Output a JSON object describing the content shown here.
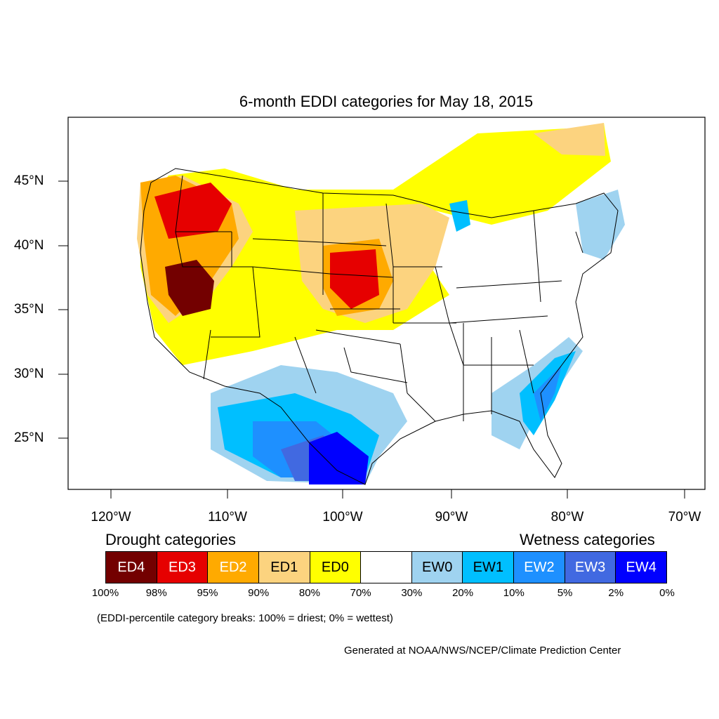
{
  "title": "6-month EDDI categories for May 18, 2015",
  "lon_labels": [
    "120°W",
    "110°W",
    "100°W",
    "90°W",
    "80°W",
    "70°W"
  ],
  "lat_labels": [
    "45°N",
    "40°N",
    "35°N",
    "30°N",
    "25°N"
  ],
  "legend": {
    "drought_heading": "Drought categories",
    "wetness_heading": "Wetness categories",
    "categories": [
      {
        "label": "ED4",
        "color": "#730000",
        "text_color": "#ffffff"
      },
      {
        "label": "ED3",
        "color": "#e60000",
        "text_color": "#ffffff"
      },
      {
        "label": "ED2",
        "color": "#ffaa00",
        "text_color": "#ffffff"
      },
      {
        "label": "ED1",
        "color": "#fcd37f",
        "text_color": "#000000"
      },
      {
        "label": "ED0",
        "color": "#ffff00",
        "text_color": "#000000"
      },
      {
        "label": "",
        "color": "#ffffff",
        "text_color": "#000000"
      },
      {
        "label": "EW0",
        "color": "#9fd3f0",
        "text_color": "#000000"
      },
      {
        "label": "EW1",
        "color": "#00bfff",
        "text_color": "#000000"
      },
      {
        "label": "EW2",
        "color": "#1e90ff",
        "text_color": "#ffffff"
      },
      {
        "label": "EW3",
        "color": "#4169e1",
        "text_color": "#ffffff"
      },
      {
        "label": "EW4",
        "color": "#0000ff",
        "text_color": "#ffffff"
      }
    ],
    "percent_breaks": [
      "100%",
      "98%",
      "95%",
      "90%",
      "80%",
      "70%",
      "30%",
      "20%",
      "10%",
      "5%",
      "2%",
      "0%"
    ]
  },
  "note": "(EDDI-percentile category breaks: 100% = driest; 0% = wettest)",
  "credit": "Generated at NOAA/NWS/NCEP/Climate Prediction Center"
}
